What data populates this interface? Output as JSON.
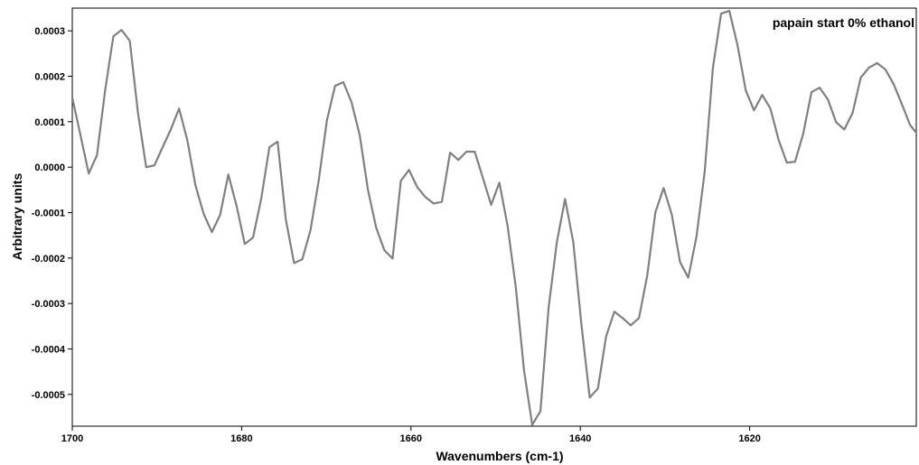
{
  "chart_data": {
    "type": "line",
    "annotation": "papain start 0% ethanol",
    "x_label": "Wavenumbers (cm-1)",
    "y_label": "Arbitrary units",
    "xlim": [
      1700,
      1600
    ],
    "ylim": [
      -0.00057,
      0.00035
    ],
    "xticks": [
      1700,
      1680,
      1660,
      1640,
      1620
    ],
    "yticks": [
      0.0003,
      0.0002,
      0.0001,
      {
        "value": 0,
        "label": "0.0000"
      },
      -0.0001,
      -0.0002,
      -0.0003,
      -0.0004,
      -0.0005
    ],
    "x": [
      1700,
      1699.03,
      1698.06,
      1697.09,
      1696.12,
      1695.15,
      1694.18,
      1693.21,
      1692.24,
      1691.27,
      1690.3,
      1689.33,
      1688.36,
      1687.39,
      1686.42,
      1685.45,
      1684.48,
      1683.51,
      1682.54,
      1681.57,
      1680.6,
      1679.63,
      1678.66,
      1677.69,
      1676.72,
      1675.75,
      1674.78,
      1673.81,
      1672.84,
      1671.87,
      1670.9,
      1669.93,
      1668.96,
      1667.99,
      1667.02,
      1666.05,
      1665.08,
      1664.11,
      1663.14,
      1662.17,
      1661.2,
      1660.23,
      1659.26,
      1658.29,
      1657.32,
      1656.35,
      1655.38,
      1654.41,
      1653.44,
      1652.47,
      1651.5,
      1650.53,
      1649.56,
      1648.59,
      1647.62,
      1646.65,
      1645.68,
      1644.71,
      1643.74,
      1642.77,
      1641.8,
      1640.83,
      1639.86,
      1638.89,
      1637.92,
      1636.95,
      1635.98,
      1635.01,
      1634.04,
      1633.07,
      1632.1,
      1631.13,
      1630.16,
      1629.19,
      1628.22,
      1627.25,
      1626.28,
      1625.31,
      1624.34,
      1623.37,
      1622.4,
      1621.43,
      1620.46,
      1619.49,
      1618.52,
      1617.55,
      1616.58,
      1615.61,
      1614.64,
      1613.67,
      1612.7,
      1611.73,
      1610.76,
      1609.79,
      1608.82,
      1607.85,
      1606.88,
      1605.91,
      1604.94,
      1603.97,
      1603,
      1602.03,
      1601.06,
      1600.09
    ],
    "series": [
      {
        "color": "#808080",
        "values": [
          0.000153,
          7e-05,
          -1.4e-05,
          2.6e-05,
          0.000169,
          0.000288,
          0.000302,
          0.000278,
          0.000119,
          0,
          4e-06,
          4.4e-05,
          8.3e-05,
          0.000129,
          6e-05,
          -4e-05,
          -0.000103,
          -0.000143,
          -0.000105,
          -1.6e-05,
          -8.5e-05,
          -0.000169,
          -0.000155,
          -7e-05,
          4.4e-05,
          5.6e-05,
          -0.000115,
          -0.000211,
          -0.000203,
          -0.000139,
          -3e-05,
          0.000103,
          0.000179,
          0.000187,
          0.000143,
          7e-05,
          -5e-05,
          -0.000133,
          -0.000183,
          -0.000201,
          -3e-05,
          -6e-06,
          -4.4e-05,
          -6.6e-05,
          -8e-05,
          -7.6e-05,
          3.2e-05,
          1.6e-05,
          3.4e-05,
          3.4e-05,
          -2.4e-05,
          -8.3e-05,
          -3.4e-05,
          -0.000129,
          -0.000264,
          -0.000447,
          -0.000567,
          -0.000537,
          -0.000308,
          -0.000165,
          -7e-05,
          -0.000165,
          -0.000348,
          -0.000507,
          -0.000487,
          -0.000372,
          -0.000318,
          -0.000332,
          -0.000348,
          -0.000332,
          -0.000239,
          -9.9e-05,
          -4.6e-05,
          -0.000105,
          -0.000209,
          -0.000243,
          -0.000153,
          -1e-05,
          0.000219,
          0.000338,
          0.000344,
          0.000268,
          0.000169,
          0.000125,
          0.000159,
          0.000129,
          6e-05,
          1e-05,
          1.2e-05,
          7.4e-05,
          0.000165,
          0.000175,
          0.000149,
          9.9e-05,
          8.3e-05,
          0.000119,
          0.000197,
          0.000219,
          0.000229,
          0.000215,
          0.000183,
          0.000139,
          9.3e-05,
          7e-05
        ]
      }
    ]
  }
}
